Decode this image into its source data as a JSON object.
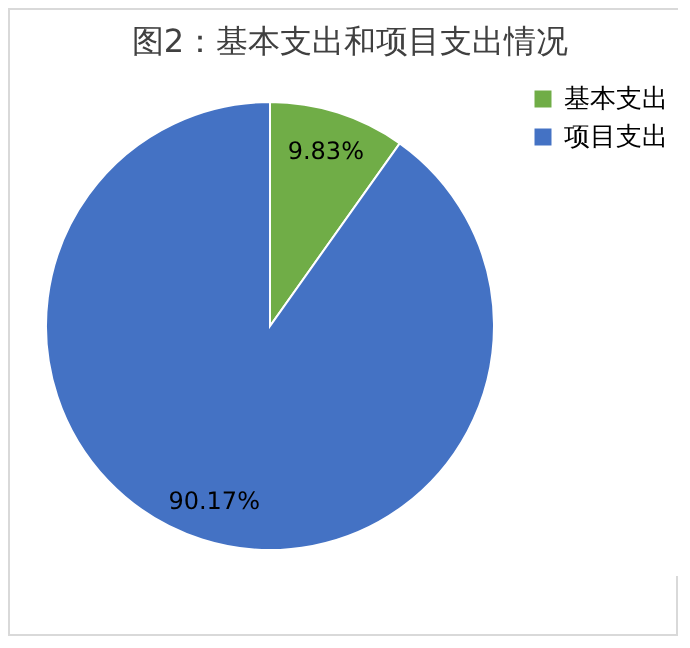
{
  "chart_data": {
    "type": "pie",
    "title": "图2：基本支出和项目支出情况",
    "categories": [
      "基本支出",
      "项目支出"
    ],
    "values": [
      9.83,
      90.17
    ],
    "colors": [
      "#70ad47",
      "#4472c4"
    ],
    "value_labels": [
      "9.83%",
      "90.17%"
    ],
    "legend": "right"
  }
}
